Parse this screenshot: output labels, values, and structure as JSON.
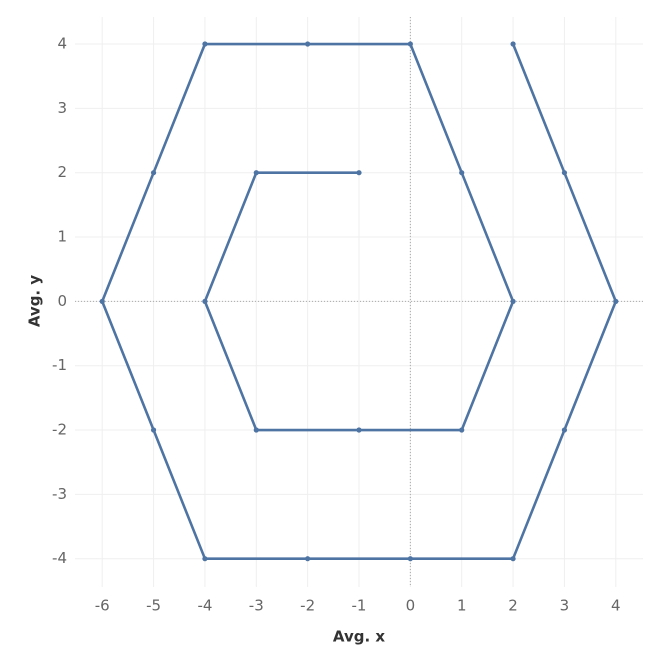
{
  "chart_data": {
    "type": "line",
    "x_label": "Avg. x",
    "y_label": "Avg. y",
    "x": [
      -1,
      -3,
      -4,
      -3,
      -1,
      1,
      2,
      1,
      0,
      -2,
      -4,
      -5,
      -6,
      -5,
      -4,
      -2,
      0,
      2,
      3,
      4,
      3,
      2
    ],
    "values": [
      2,
      2,
      0,
      -2,
      -2,
      -2,
      0,
      2,
      4,
      4,
      4,
      2,
      0,
      -2,
      -4,
      -4,
      -4,
      -4,
      -2,
      0,
      2,
      4
    ],
    "color": "#4e74a3",
    "xlim": [
      -6.53,
      4.53
    ],
    "xticks": [
      -6,
      -5,
      -4,
      -3,
      -2,
      -1,
      0,
      1,
      2,
      3,
      4
    ],
    "ylim": [
      -4.44,
      4.42
    ],
    "yticks": [
      -4,
      -3,
      -2,
      -1,
      0,
      1,
      2,
      3,
      4
    ],
    "grid": true,
    "zero_lines": true,
    "markers": true
  }
}
